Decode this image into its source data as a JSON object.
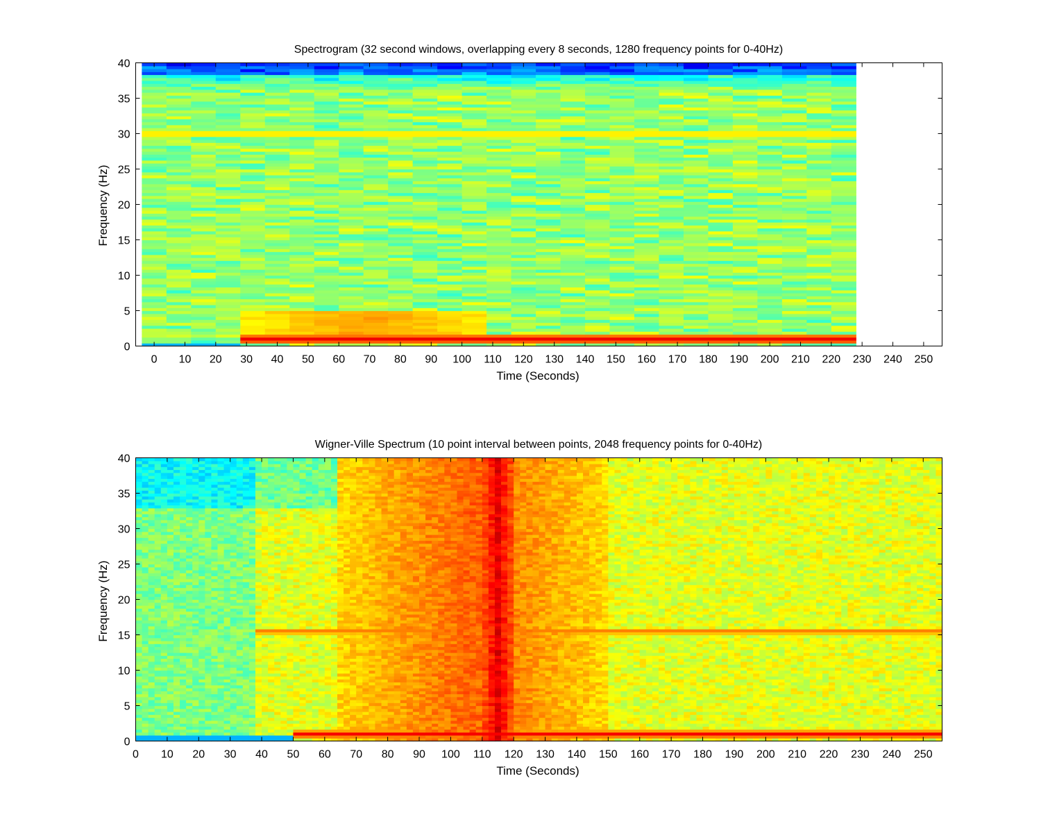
{
  "colors": {
    "colormap": [
      "#00008f",
      "#0000ff",
      "#0080ff",
      "#00ffff",
      "#80ff80",
      "#ffff00",
      "#ff8000",
      "#ff0000",
      "#800000"
    ],
    "background": "#ffffff",
    "axes": "#000000"
  },
  "chart_data": [
    {
      "type": "heatmap",
      "title": "Spectrogram (32 second windows, overlapping every 8 seconds, 1280 frequency points for 0-40Hz)",
      "xlabel": "Time (Seconds)",
      "ylabel": "Frequency (Hz)",
      "xlim": [
        -6,
        256
      ],
      "ylim": [
        0,
        40
      ],
      "xticks": [
        0,
        10,
        20,
        30,
        40,
        50,
        60,
        70,
        80,
        90,
        100,
        110,
        120,
        130,
        140,
        150,
        160,
        170,
        180,
        190,
        200,
        210,
        220,
        230,
        240,
        250
      ],
      "yticks": [
        0,
        5,
        10,
        15,
        20,
        25,
        30,
        35,
        40
      ],
      "data_extent_x": [
        -4,
        228
      ],
      "window_step_seconds": 8,
      "features": [
        {
          "kind": "band",
          "freq": 1.0,
          "from": 28,
          "to": 228,
          "level": 0.9
        },
        {
          "kind": "band",
          "freq": 30.0,
          "from": -4,
          "to": 228,
          "level": 0.7
        },
        {
          "kind": "region",
          "freq_range": [
            1.5,
            5
          ],
          "from": 28,
          "to": 110,
          "level": 0.72
        }
      ]
    },
    {
      "type": "heatmap",
      "title": "Wigner-Ville Spectrum (10 point interval between points, 2048 frequency points for 0-40Hz)",
      "xlabel": "Time (Seconds)",
      "ylabel": "Frequency (Hz)",
      "xlim": [
        0,
        256
      ],
      "ylim": [
        0,
        40
      ],
      "xticks": [
        0,
        10,
        20,
        30,
        40,
        50,
        60,
        70,
        80,
        90,
        100,
        110,
        120,
        130,
        140,
        150,
        160,
        170,
        180,
        190,
        200,
        210,
        220,
        230,
        240,
        250
      ],
      "yticks": [
        0,
        5,
        10,
        15,
        20,
        25,
        30,
        35,
        40
      ],
      "data_extent_x": [
        0,
        256
      ],
      "features": [
        {
          "kind": "band",
          "freq": 1.0,
          "from": 50,
          "to": 256,
          "level": 0.9
        },
        {
          "kind": "band",
          "freq": 15.5,
          "from": 38,
          "to": 256,
          "level": 0.8
        },
        {
          "kind": "region",
          "freq_range": [
            0,
            40
          ],
          "from": 64,
          "to": 150,
          "level": 0.78
        },
        {
          "kind": "region",
          "freq_range": [
            0,
            40
          ],
          "from": 110,
          "to": 120,
          "level": 0.9
        }
      ]
    }
  ]
}
